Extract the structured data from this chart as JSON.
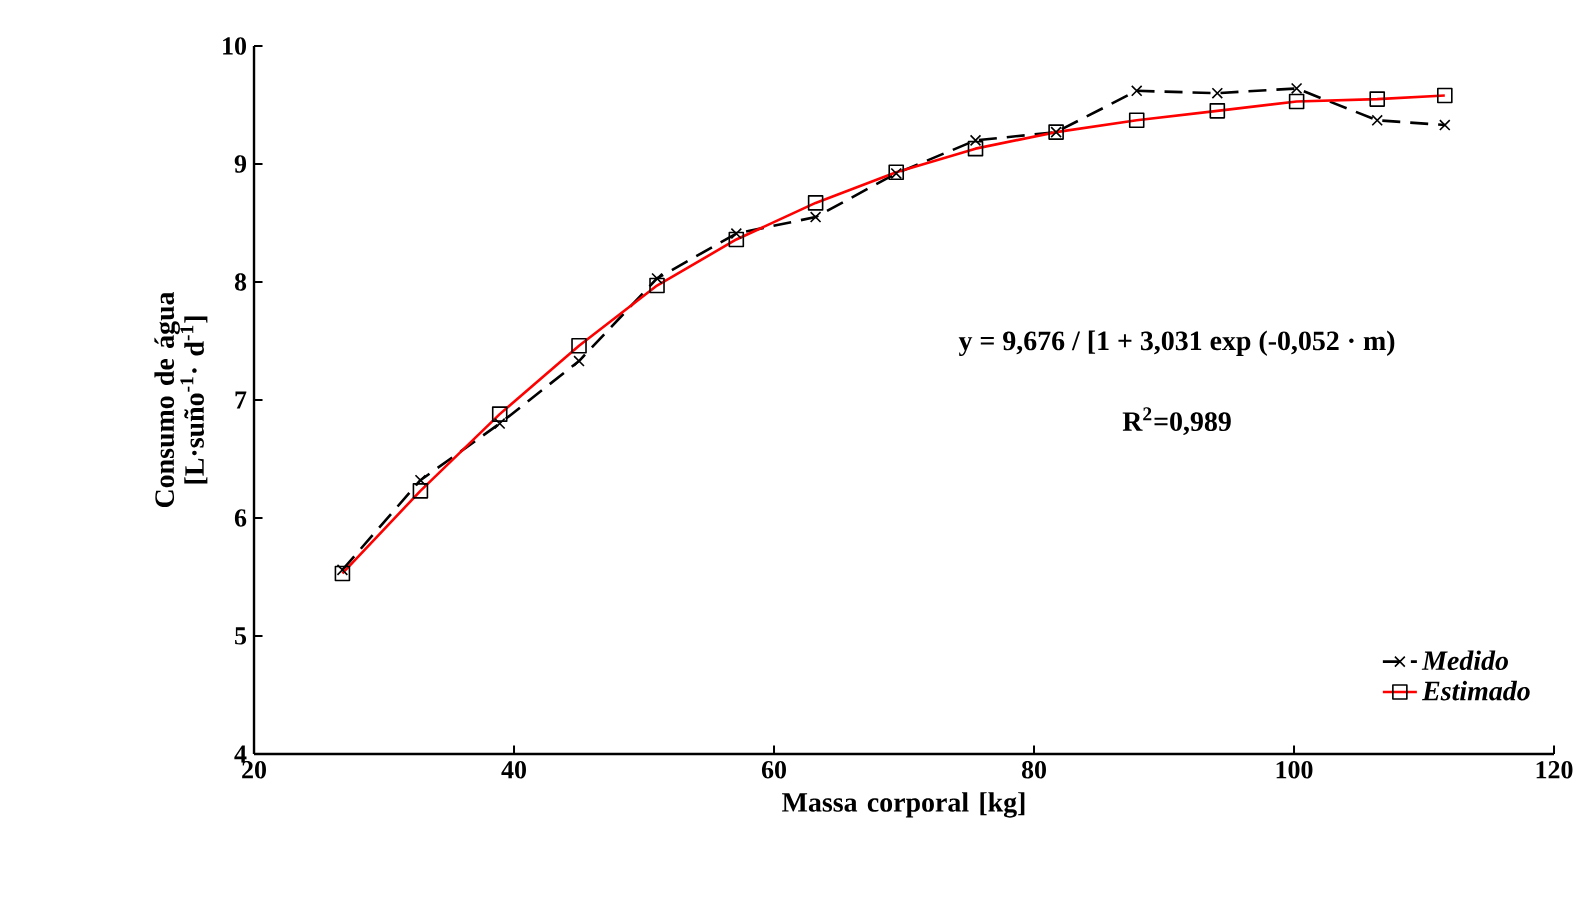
{
  "chart_data": {
    "type": "line",
    "xlabel": "Massa corporal [kg]",
    "ylabel": "Consumo de água [L·suño$^{-1}$· d$^{-1}$]",
    "x": [
      26.8,
      32.8,
      38.9,
      45,
      51,
      57.1,
      63.2,
      69.4,
      75.5,
      81.7,
      87.9,
      94.1,
      100.2,
      106.4,
      111.6
    ],
    "series": [
      {
        "name": "Medido",
        "color": "#000000",
        "marker": "cross",
        "line_style": "dashed",
        "values": [
          5.56,
          6.32,
          6.8,
          7.33,
          8.03,
          8.41,
          8.55,
          8.92,
          9.2,
          9.27,
          9.62,
          9.6,
          9.64,
          9.37,
          9.33
        ]
      },
      {
        "name": "Estimado",
        "color": "#ff0000",
        "marker": "square",
        "line_style": "solid",
        "values": [
          5.53,
          6.23,
          6.88,
          7.46,
          7.97,
          8.36,
          8.67,
          8.93,
          9.13,
          9.27,
          9.37,
          9.45,
          9.53,
          9.55,
          9.58
        ]
      }
    ],
    "xlim": [
      20,
      120
    ],
    "xticks": [
      20,
      40,
      60,
      80,
      100,
      120
    ],
    "ylim": [
      4,
      10
    ],
    "yticks": [
      4,
      5,
      6,
      7,
      8,
      9,
      10
    ],
    "annotations": [
      "y = 9,676 / [1 + 3,031 exp (-0,052 · m)",
      "R$^{2}$=0,989"
    ],
    "legend": "bottom right",
    "grid": false
  }
}
